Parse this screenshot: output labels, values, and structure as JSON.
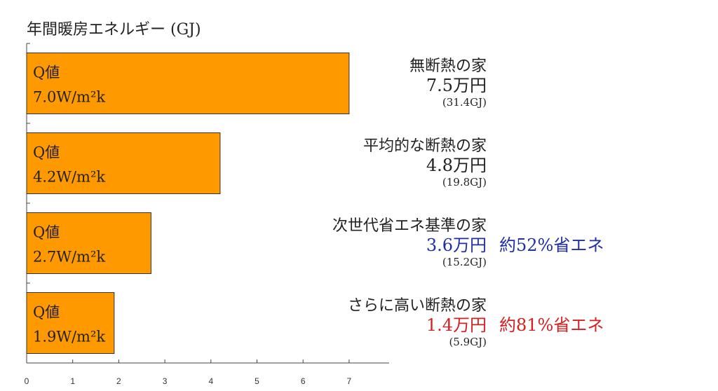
{
  "colors": {
    "bar_fill": "#ff9900",
    "bar_stroke": "#333333",
    "blue": "#1f2fa8",
    "red": "#d42020"
  },
  "chart_data": {
    "type": "bar",
    "orientation": "horizontal",
    "title": "年間暖房エネルギー (GJ)",
    "xlim": [
      0,
      7.8
    ],
    "xticks": [
      "0",
      "1",
      "2",
      "3",
      "4",
      "5",
      "6",
      "7"
    ],
    "grid": false,
    "bars": [
      {
        "value": 7.0,
        "label_q": "Q値",
        "label_w": "7.0W/m²k",
        "house": "無断熱の家",
        "cost": "7.5万円",
        "gj": "(31.4GJ)",
        "saving": "",
        "cost_color": "default"
      },
      {
        "value": 4.2,
        "label_q": "Q値",
        "label_w": "4.2W/m²k",
        "house": "平均的な断熱の家",
        "cost": "4.8万円",
        "gj": "(19.8GJ)",
        "saving": "",
        "cost_color": "default"
      },
      {
        "value": 2.7,
        "label_q": "Q値",
        "label_w": "2.7W/m²k",
        "house": "次世代省エネ基準の家",
        "cost": "3.6万円",
        "gj": "(15.2GJ)",
        "saving": "約52%省エネ",
        "cost_color": "blue"
      },
      {
        "value": 1.9,
        "label_q": "Q値",
        "label_w": "1.9W/m²k",
        "house": "さらに高い断熱の家",
        "cost": "1.4万円",
        "gj": "(5.9GJ)",
        "saving": "約81%省エネ",
        "cost_color": "red"
      }
    ]
  }
}
